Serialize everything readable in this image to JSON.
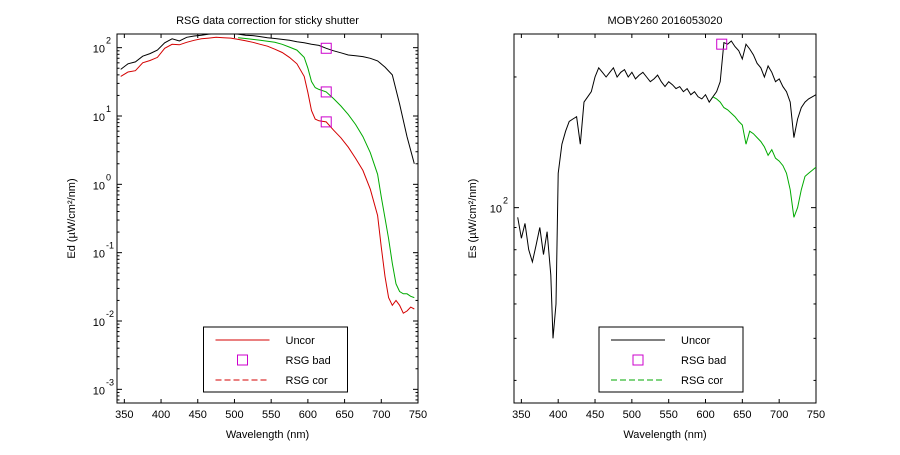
{
  "chart_data": [
    {
      "type": "line",
      "title": "RSG data correction for sticky shutter",
      "xlabel": "Wavelength (nm)",
      "ylabel": "Ed (µW/cm²/nm)",
      "xlim": [
        340,
        750
      ],
      "ylim_log10": [
        -3.2,
        2.2
      ],
      "y_scale": "log",
      "x_ticks": [
        350,
        400,
        450,
        500,
        550,
        600,
        650,
        700,
        750
      ],
      "x_tick_labels": [
        "350",
        "400",
        "450",
        "500",
        "550",
        "600",
        "650",
        "700",
        "750"
      ],
      "y_tick_exponents": [
        2,
        1,
        0,
        -1,
        -2,
        -3
      ],
      "y_tick_base": "10",
      "y_tick_exponent_labels": [
        "2",
        "1",
        "0",
        "-1",
        "-2",
        "-3"
      ],
      "grid": false,
      "legend_position": "bottom-center",
      "legend": [
        "Uncor",
        "RSG bad",
        "RSG cor"
      ],
      "series": [
        {
          "name": "Uncor",
          "color": "#000000",
          "style": "solid",
          "x": [
            345,
            355,
            365,
            375,
            385,
            395,
            405,
            415,
            425,
            435,
            445,
            455,
            465,
            475,
            485,
            495,
            505,
            515,
            525,
            535,
            545,
            555,
            565,
            575,
            585,
            595,
            605,
            615,
            625,
            635,
            645,
            655,
            665,
            675,
            685,
            695,
            705,
            715,
            725,
            735,
            745
          ],
          "y": [
            48,
            58,
            62,
            75,
            82,
            92,
            118,
            135,
            125,
            142,
            148,
            152,
            158,
            160,
            162,
            160,
            158,
            152,
            150,
            145,
            140,
            136,
            132,
            128,
            122,
            118,
            112,
            108,
            98,
            90,
            84,
            78,
            76,
            74,
            70,
            64,
            52,
            40,
            15,
            5,
            2
          ]
        },
        {
          "name": "Uncor",
          "color": "#d40000",
          "style": "solid",
          "x": [
            345,
            355,
            365,
            375,
            385,
            395,
            405,
            415,
            425,
            435,
            445,
            455,
            465,
            475,
            485,
            495,
            505,
            515,
            525,
            535,
            545,
            555,
            565,
            575,
            585,
            595,
            600,
            605,
            610,
            615,
            625,
            635,
            645,
            655,
            665,
            675,
            685,
            695,
            700,
            705,
            710,
            715,
            720,
            725,
            730,
            735,
            740,
            745
          ],
          "y": [
            38,
            44,
            46,
            60,
            65,
            72,
            98,
            112,
            110,
            120,
            128,
            135,
            138,
            142,
            140,
            138,
            132,
            126,
            120,
            112,
            105,
            95,
            85,
            72,
            58,
            38,
            22,
            12,
            9,
            8.5,
            8.2,
            6.2,
            4.8,
            3.5,
            2.4,
            1.6,
            0.85,
            0.35,
            0.12,
            0.045,
            0.022,
            0.017,
            0.02,
            0.017,
            0.013,
            0.014,
            0.016,
            0.015
          ]
        },
        {
          "name": "RSG cor",
          "color": "#00aa00",
          "style": "solid",
          "x": [
            505,
            515,
            525,
            535,
            545,
            555,
            565,
            575,
            585,
            595,
            600,
            605,
            610,
            615,
            625,
            635,
            645,
            655,
            665,
            675,
            685,
            695,
            700,
            705,
            710,
            715,
            720,
            725,
            730,
            735,
            740,
            745
          ],
          "y": [
            140,
            136,
            132,
            128,
            124,
            120,
            112,
            102,
            92,
            72,
            50,
            32,
            26,
            24.5,
            22.5,
            18,
            14,
            10.5,
            7.5,
            5,
            2.9,
            1.4,
            0.65,
            0.32,
            0.16,
            0.07,
            0.035,
            0.027,
            0.025,
            0.025,
            0.023,
            0.022
          ]
        }
      ],
      "markers": [
        {
          "name": "RSG bad",
          "x": 625,
          "y": [
            98,
            22.5,
            8.2
          ],
          "color": "#cc00cc",
          "shape": "square"
        }
      ]
    },
    {
      "type": "line",
      "title": "MOBY260  2016053020",
      "xlabel": "Wavelength (nm)",
      "ylabel": "Es (µW/cm²/nm)",
      "xlim": [
        340,
        750
      ],
      "ylim_log10": [
        1.55,
        2.4
      ],
      "y_scale": "log",
      "x_ticks": [
        350,
        400,
        450,
        500,
        550,
        600,
        650,
        700,
        750
      ],
      "x_tick_labels": [
        "350",
        "400",
        "450",
        "500",
        "550",
        "600",
        "650",
        "700",
        "750"
      ],
      "y_tick_exponents": [
        2
      ],
      "y_tick_base": "10",
      "y_tick_exponent_labels": [
        "2"
      ],
      "grid": false,
      "legend_position": "bottom-center",
      "legend": [
        "Uncor",
        "RSG bad",
        "RSG cor"
      ],
      "series": [
        {
          "name": "Uncor",
          "color": "#000000",
          "style": "solid",
          "x": [
            345,
            350,
            355,
            360,
            365,
            370,
            375,
            380,
            385,
            390,
            393,
            397,
            400,
            405,
            410,
            415,
            420,
            425,
            430,
            435,
            440,
            445,
            450,
            455,
            460,
            465,
            470,
            475,
            480,
            485,
            490,
            495,
            500,
            505,
            510,
            515,
            520,
            525,
            530,
            535,
            540,
            545,
            550,
            555,
            560,
            565,
            570,
            575,
            580,
            585,
            590,
            595,
            600,
            605,
            610,
            615,
            620,
            625,
            630,
            635,
            640,
            645,
            650,
            655,
            660,
            665,
            670,
            675,
            680,
            685,
            690,
            695,
            700,
            705,
            710,
            715,
            720,
            725,
            730,
            735,
            740,
            745,
            750
          ],
          "y": [
            95,
            85,
            92,
            80,
            75,
            82,
            90,
            78,
            88,
            70,
            50,
            60,
            120,
            140,
            150,
            158,
            160,
            162,
            140,
            175,
            180,
            185,
            200,
            210,
            205,
            200,
            205,
            210,
            200,
            205,
            208,
            200,
            205,
            198,
            202,
            205,
            200,
            195,
            198,
            202,
            195,
            190,
            195,
            192,
            188,
            190,
            185,
            188,
            182,
            185,
            180,
            178,
            182,
            175,
            180,
            185,
            195,
            240,
            238,
            242,
            235,
            230,
            220,
            238,
            232,
            225,
            215,
            210,
            200,
            212,
            205,
            195,
            198,
            190,
            185,
            175,
            145,
            160,
            170,
            175,
            178,
            180,
            182
          ]
        },
        {
          "name": "RSG cor",
          "color": "#00aa00",
          "style": "solid",
          "x": [
            610,
            615,
            620,
            625,
            630,
            635,
            640,
            645,
            650,
            655,
            660,
            665,
            670,
            675,
            680,
            685,
            690,
            695,
            700,
            705,
            710,
            715,
            720,
            725,
            730,
            735,
            740,
            745,
            750
          ],
          "y": [
            180,
            178,
            175,
            170,
            168,
            165,
            162,
            158,
            155,
            140,
            150,
            148,
            145,
            142,
            138,
            132,
            136,
            130,
            128,
            125,
            120,
            110,
            95,
            100,
            110,
            118,
            120,
            122,
            124
          ]
        }
      ],
      "markers": [
        {
          "name": "RSG bad",
          "x": 622,
          "y": [
            238
          ],
          "color": "#cc00cc",
          "shape": "square"
        }
      ]
    }
  ]
}
